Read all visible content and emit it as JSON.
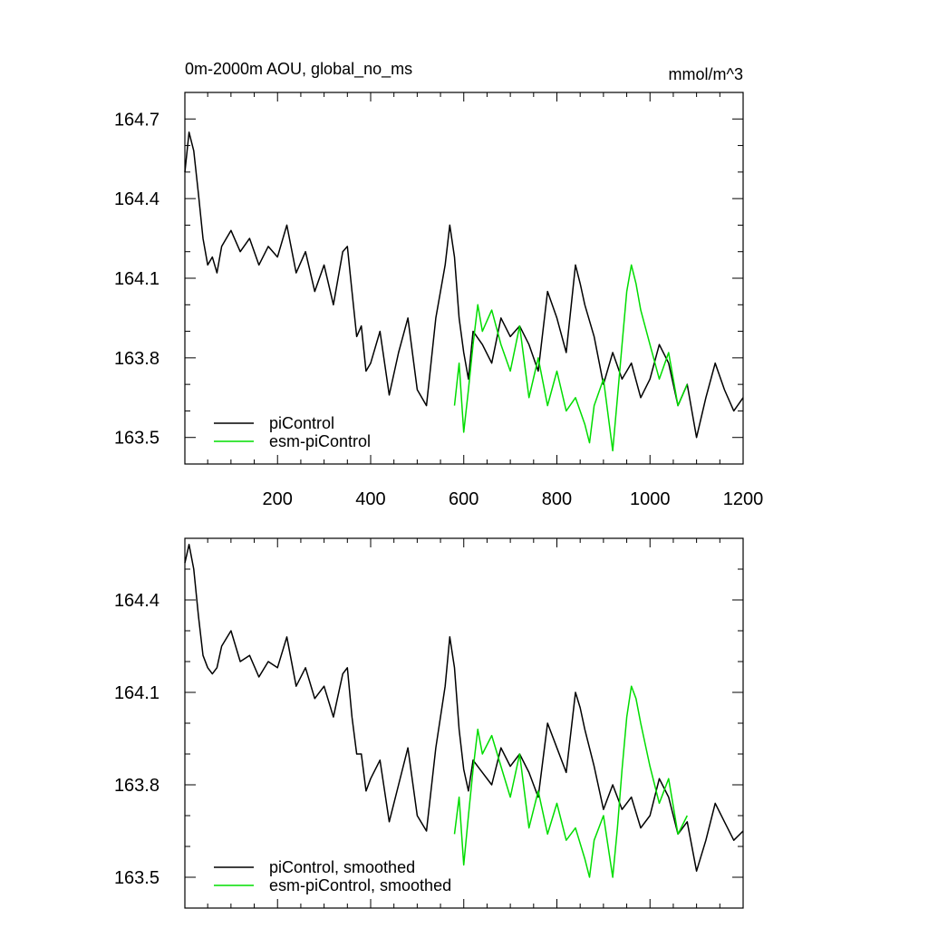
{
  "figure": {
    "title_left": "0m-2000m AOU, global_no_ms",
    "title_right": "mmol/m^3"
  },
  "colors": {
    "black_series": "#000000",
    "green_series": "#00dd00"
  },
  "chart_data": [
    {
      "type": "line",
      "title": "0m-2000m AOU, global_no_ms",
      "units": "mmol/m^3",
      "xlim": [
        1,
        1200
      ],
      "ylim": [
        163.4,
        164.8
      ],
      "xticks": [
        200,
        400,
        600,
        800,
        1000,
        1200
      ],
      "yticks": [
        163.5,
        163.8,
        164.1,
        164.4,
        164.7
      ],
      "ytick_labels": [
        "163.5",
        "163.8",
        "164.1",
        "164.4",
        "164.7"
      ],
      "xtick_labels": [
        "200",
        "400",
        "600",
        "800",
        "1000",
        "1200"
      ],
      "grid": false,
      "legend_position": "bottom-left",
      "series": [
        {
          "name": "piControl",
          "color": "#000000",
          "x": [
            1,
            10,
            20,
            30,
            40,
            50,
            60,
            70,
            80,
            100,
            120,
            140,
            160,
            180,
            200,
            220,
            240,
            260,
            280,
            300,
            320,
            340,
            350,
            360,
            370,
            380,
            390,
            400,
            420,
            440,
            460,
            480,
            500,
            520,
            540,
            560,
            570,
            580,
            590,
            600,
            610,
            620,
            640,
            660,
            680,
            700,
            720,
            740,
            760,
            780,
            800,
            820,
            840,
            850,
            860,
            880,
            900,
            920,
            940,
            960,
            980,
            1000,
            1020,
            1040,
            1060,
            1080,
            1100,
            1120,
            1140,
            1160,
            1180,
            1200
          ],
          "y": [
            164.5,
            164.65,
            164.58,
            164.42,
            164.25,
            164.15,
            164.18,
            164.12,
            164.22,
            164.28,
            164.2,
            164.25,
            164.15,
            164.22,
            164.18,
            164.3,
            164.12,
            164.2,
            164.05,
            164.15,
            164.0,
            164.2,
            164.22,
            164.05,
            163.88,
            163.92,
            163.75,
            163.78,
            163.9,
            163.66,
            163.82,
            163.95,
            163.68,
            163.62,
            163.95,
            164.15,
            164.3,
            164.18,
            163.95,
            163.82,
            163.72,
            163.9,
            163.85,
            163.78,
            163.95,
            163.88,
            163.92,
            163.85,
            163.75,
            164.05,
            163.95,
            163.82,
            164.15,
            164.08,
            164.0,
            163.88,
            163.7,
            163.82,
            163.72,
            163.78,
            163.65,
            163.72,
            163.85,
            163.78,
            163.62,
            163.7,
            163.5,
            163.65,
            163.78,
            163.68,
            163.6,
            163.65
          ]
        },
        {
          "name": "esm-piControl",
          "color": "#00dd00",
          "x": [
            580,
            590,
            600,
            610,
            620,
            630,
            640,
            660,
            680,
            700,
            720,
            740,
            760,
            780,
            800,
            820,
            840,
            860,
            870,
            880,
            900,
            920,
            930,
            940,
            950,
            960,
            970,
            980,
            1000,
            1020,
            1040,
            1060,
            1080
          ],
          "y": [
            163.62,
            163.78,
            163.52,
            163.68,
            163.85,
            164.0,
            163.9,
            163.98,
            163.85,
            163.75,
            163.92,
            163.65,
            163.8,
            163.62,
            163.75,
            163.6,
            163.65,
            163.55,
            163.48,
            163.62,
            163.72,
            163.45,
            163.65,
            163.85,
            164.05,
            164.15,
            164.08,
            163.98,
            163.85,
            163.72,
            163.82,
            163.62,
            163.7
          ]
        }
      ]
    },
    {
      "type": "line",
      "xlim": [
        1,
        1200
      ],
      "ylim": [
        163.4,
        164.6
      ],
      "xticks": [
        200,
        400,
        600,
        800,
        1000,
        1200
      ],
      "yticks": [
        163.5,
        163.8,
        164.1,
        164.4
      ],
      "ytick_labels": [
        "163.5",
        "163.8",
        "164.1",
        "164.4"
      ],
      "grid": false,
      "legend_position": "bottom-left",
      "series": [
        {
          "name": "piControl, smoothed",
          "color": "#000000",
          "x": [
            1,
            10,
            20,
            30,
            40,
            50,
            60,
            70,
            80,
            100,
            120,
            140,
            160,
            180,
            200,
            220,
            240,
            260,
            280,
            300,
            320,
            340,
            350,
            360,
            370,
            380,
            390,
            400,
            420,
            440,
            460,
            480,
            500,
            520,
            540,
            560,
            570,
            580,
            590,
            600,
            610,
            620,
            640,
            660,
            680,
            700,
            720,
            740,
            760,
            780,
            800,
            820,
            840,
            850,
            860,
            880,
            900,
            920,
            940,
            960,
            980,
            1000,
            1020,
            1040,
            1060,
            1080,
            1100,
            1120,
            1140,
            1160,
            1180,
            1200
          ],
          "y": [
            164.52,
            164.58,
            164.5,
            164.35,
            164.22,
            164.18,
            164.16,
            164.18,
            164.25,
            164.3,
            164.2,
            164.22,
            164.15,
            164.2,
            164.18,
            164.28,
            164.12,
            164.18,
            164.08,
            164.12,
            164.02,
            164.16,
            164.18,
            164.02,
            163.9,
            163.9,
            163.78,
            163.82,
            163.88,
            163.68,
            163.8,
            163.92,
            163.7,
            163.65,
            163.92,
            164.12,
            164.28,
            164.18,
            163.98,
            163.85,
            163.78,
            163.88,
            163.84,
            163.8,
            163.92,
            163.86,
            163.9,
            163.84,
            163.76,
            164.0,
            163.92,
            163.84,
            164.1,
            164.05,
            163.98,
            163.86,
            163.72,
            163.8,
            163.72,
            163.76,
            163.66,
            163.7,
            163.82,
            163.76,
            163.64,
            163.68,
            163.52,
            163.62,
            163.74,
            163.68,
            163.62,
            163.65
          ]
        },
        {
          "name": "esm-piControl, smoothed",
          "color": "#00dd00",
          "x": [
            580,
            590,
            600,
            610,
            620,
            630,
            640,
            660,
            680,
            700,
            720,
            740,
            760,
            780,
            800,
            820,
            840,
            860,
            870,
            880,
            900,
            920,
            930,
            940,
            950,
            960,
            970,
            980,
            1000,
            1020,
            1040,
            1060,
            1080
          ],
          "y": [
            163.64,
            163.76,
            163.54,
            163.7,
            163.85,
            163.98,
            163.9,
            163.96,
            163.86,
            163.76,
            163.9,
            163.66,
            163.78,
            163.64,
            163.74,
            163.62,
            163.66,
            163.56,
            163.5,
            163.62,
            163.7,
            163.5,
            163.66,
            163.85,
            164.02,
            164.12,
            164.08,
            164.0,
            163.86,
            163.74,
            163.82,
            163.64,
            163.7
          ]
        }
      ]
    }
  ]
}
